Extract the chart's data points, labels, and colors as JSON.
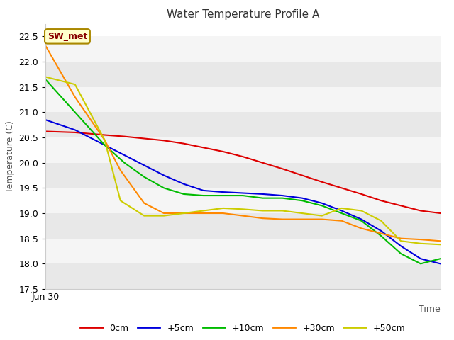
{
  "title": "Water Temperature Profile A",
  "xlabel": "Time",
  "ylabel": "Temperature (C)",
  "annotation": "SW_met",
  "xtick_label": "Jun 30",
  "xlim": [
    0,
    20
  ],
  "ylim": [
    17.5,
    22.75
  ],
  "yticks": [
    17.5,
    18.0,
    18.5,
    19.0,
    19.5,
    20.0,
    20.5,
    21.0,
    21.5,
    22.0,
    22.5
  ],
  "fig_facecolor": "#ffffff",
  "plot_facecolor": "#ffffff",
  "band_colors": [
    "#e8e8e8",
    "#f5f5f5"
  ],
  "series": {
    "0cm": {
      "color": "#dd0000",
      "x": [
        0,
        1.5,
        3,
        4,
        5,
        6,
        7,
        8,
        9,
        10,
        11,
        12,
        13,
        14,
        15,
        16,
        17,
        18,
        19,
        20
      ],
      "y": [
        20.62,
        20.6,
        20.55,
        20.52,
        20.48,
        20.44,
        20.38,
        20.3,
        20.22,
        20.12,
        20.0,
        19.88,
        19.75,
        19.62,
        19.5,
        19.38,
        19.25,
        19.15,
        19.05,
        19.0
      ]
    },
    "+5cm": {
      "color": "#0000dd",
      "x": [
        0,
        1.5,
        3,
        4,
        5,
        6,
        7,
        8,
        9,
        10,
        11,
        12,
        13,
        14,
        15,
        16,
        17,
        18,
        19,
        20
      ],
      "y": [
        20.85,
        20.65,
        20.35,
        20.15,
        19.95,
        19.75,
        19.58,
        19.45,
        19.42,
        19.4,
        19.38,
        19.35,
        19.3,
        19.2,
        19.05,
        18.88,
        18.65,
        18.35,
        18.1,
        18.0
      ]
    },
    "+10cm": {
      "color": "#00bb00",
      "x": [
        0,
        1.5,
        3,
        4,
        5,
        6,
        7,
        8,
        9,
        10,
        11,
        12,
        13,
        14,
        15,
        16,
        17,
        18,
        19,
        20
      ],
      "y": [
        21.65,
        21.0,
        20.35,
        20.0,
        19.72,
        19.5,
        19.38,
        19.35,
        19.35,
        19.35,
        19.3,
        19.3,
        19.25,
        19.15,
        19.0,
        18.85,
        18.55,
        18.2,
        18.0,
        18.1
      ]
    },
    "+30cm": {
      "color": "#ff8800",
      "x": [
        0,
        1.5,
        3,
        3.8,
        5,
        6,
        7,
        8,
        9,
        10,
        11,
        12,
        13,
        14,
        15,
        16,
        17,
        18,
        19,
        20
      ],
      "y": [
        22.32,
        21.3,
        20.45,
        19.85,
        19.2,
        19.0,
        19.0,
        19.0,
        19.0,
        18.95,
        18.9,
        18.88,
        18.88,
        18.88,
        18.85,
        18.7,
        18.6,
        18.5,
        18.48,
        18.45
      ]
    },
    "+50cm": {
      "color": "#cccc00",
      "x": [
        0,
        1.5,
        3,
        3.8,
        5,
        6,
        7,
        8,
        9,
        10,
        11,
        12,
        13,
        14,
        15,
        16,
        17,
        18,
        19,
        20
      ],
      "y": [
        21.7,
        21.55,
        20.45,
        19.25,
        18.95,
        18.95,
        19.0,
        19.05,
        19.1,
        19.08,
        19.05,
        19.05,
        19.0,
        18.95,
        19.1,
        19.05,
        18.85,
        18.45,
        18.4,
        18.38
      ]
    }
  },
  "legend_order": [
    "0cm",
    "+5cm",
    "+10cm",
    "+30cm",
    "+50cm"
  ],
  "title_fontsize": 11,
  "axis_label_fontsize": 9,
  "tick_fontsize": 9,
  "legend_fontsize": 9
}
